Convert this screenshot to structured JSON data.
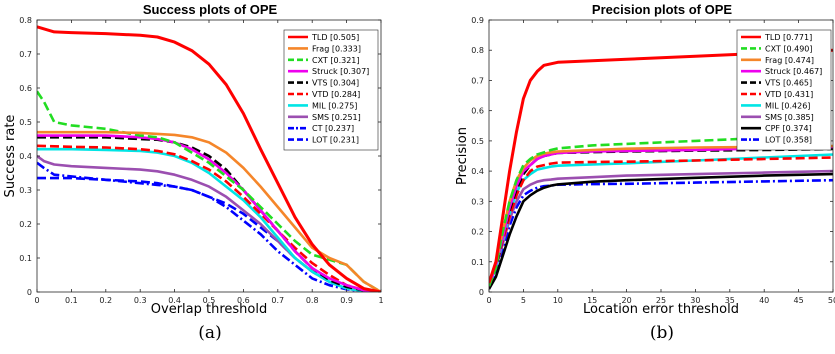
{
  "chart_data": [
    {
      "type": "line",
      "title": "Success plots of OPE",
      "xlabel": "Overlap threshold",
      "ylabel": "Success rate",
      "caption": "(a)",
      "xlim": [
        0,
        1
      ],
      "ylim": [
        0,
        0.8
      ],
      "xticks": [
        "0",
        "0.1",
        "0.2",
        "0.3",
        "0.4",
        "0.5",
        "0.6",
        "0.7",
        "0.8",
        "0.9",
        "1"
      ],
      "yticks": [
        "0",
        "0.1",
        "0.2",
        "0.3",
        "0.4",
        "0.5",
        "0.6",
        "0.7",
        "0.8"
      ],
      "grid": false,
      "legend_position": "top-right",
      "series": [
        {
          "name": "TLD [0.505]",
          "color": "#ff0000",
          "dash": "solid",
          "x": [
            0,
            0.05,
            0.1,
            0.2,
            0.3,
            0.35,
            0.4,
            0.45,
            0.5,
            0.55,
            0.6,
            0.65,
            0.7,
            0.75,
            0.8,
            0.85,
            0.9,
            0.95,
            1
          ],
          "y": [
            0.78,
            0.765,
            0.763,
            0.76,
            0.755,
            0.75,
            0.735,
            0.71,
            0.67,
            0.61,
            0.525,
            0.42,
            0.32,
            0.22,
            0.14,
            0.08,
            0.04,
            0.01,
            0
          ]
        },
        {
          "name": "Frag [0.333]",
          "color": "#f5862a",
          "dash": "solid",
          "x": [
            0,
            0.1,
            0.2,
            0.3,
            0.35,
            0.4,
            0.45,
            0.5,
            0.55,
            0.6,
            0.65,
            0.7,
            0.75,
            0.8,
            0.85,
            0.9,
            0.95,
            1
          ],
          "y": [
            0.47,
            0.47,
            0.47,
            0.468,
            0.465,
            0.462,
            0.455,
            0.44,
            0.41,
            0.365,
            0.31,
            0.25,
            0.19,
            0.13,
            0.1,
            0.08,
            0.03,
            0
          ]
        },
        {
          "name": "CXT [0.321]",
          "color": "#22dd22",
          "dash": "dash",
          "x": [
            0,
            0.02,
            0.05,
            0.1,
            0.2,
            0.3,
            0.35,
            0.4,
            0.45,
            0.5,
            0.55,
            0.6,
            0.65,
            0.7,
            0.75,
            0.8,
            0.85,
            0.9,
            0.95,
            1
          ],
          "y": [
            0.59,
            0.56,
            0.5,
            0.49,
            0.48,
            0.46,
            0.455,
            0.44,
            0.41,
            0.38,
            0.34,
            0.3,
            0.25,
            0.2,
            0.15,
            0.11,
            0.095,
            0.08,
            0.03,
            0
          ]
        },
        {
          "name": "Struck [0.307]",
          "color": "#ee00ee",
          "dash": "solid",
          "x": [
            0,
            0.1,
            0.2,
            0.3,
            0.35,
            0.4,
            0.45,
            0.5,
            0.55,
            0.6,
            0.65,
            0.7,
            0.75,
            0.8,
            0.85,
            0.9,
            0.95,
            1
          ],
          "y": [
            0.46,
            0.46,
            0.46,
            0.455,
            0.45,
            0.44,
            0.42,
            0.39,
            0.35,
            0.3,
            0.24,
            0.18,
            0.12,
            0.07,
            0.04,
            0.02,
            0.005,
            0
          ]
        },
        {
          "name": "VTS [0.304]",
          "color": "#000000",
          "dash": "dash",
          "x": [
            0,
            0.1,
            0.2,
            0.3,
            0.35,
            0.4,
            0.45,
            0.5,
            0.55,
            0.6,
            0.65,
            0.7,
            0.75,
            0.8,
            0.85,
            0.9,
            0.95,
            1
          ],
          "y": [
            0.455,
            0.455,
            0.455,
            0.45,
            0.448,
            0.44,
            0.425,
            0.4,
            0.36,
            0.3,
            0.24,
            0.18,
            0.12,
            0.07,
            0.035,
            0.015,
            0.005,
            0
          ]
        },
        {
          "name": "VTD [0.284]",
          "color": "#ff0000",
          "dash": "dash",
          "x": [
            0,
            0.1,
            0.2,
            0.3,
            0.35,
            0.4,
            0.45,
            0.5,
            0.55,
            0.6,
            0.65,
            0.7,
            0.75,
            0.8,
            0.85,
            0.9,
            0.95,
            1
          ],
          "y": [
            0.43,
            0.427,
            0.425,
            0.42,
            0.415,
            0.405,
            0.385,
            0.36,
            0.325,
            0.28,
            0.23,
            0.18,
            0.13,
            0.085,
            0.05,
            0.02,
            0.005,
            0
          ]
        },
        {
          "name": "MIL [0.275]",
          "color": "#00e5e5",
          "dash": "solid",
          "x": [
            0,
            0.1,
            0.2,
            0.3,
            0.35,
            0.4,
            0.45,
            0.5,
            0.55,
            0.6,
            0.65,
            0.7,
            0.75,
            0.8,
            0.85,
            0.9,
            0.95,
            1
          ],
          "y": [
            0.42,
            0.42,
            0.418,
            0.415,
            0.41,
            0.4,
            0.38,
            0.35,
            0.31,
            0.27,
            0.22,
            0.16,
            0.1,
            0.06,
            0.03,
            0.01,
            0.003,
            0
          ]
        },
        {
          "name": "SMS [0.251]",
          "color": "#9b4fb0",
          "dash": "solid",
          "x": [
            0,
            0.02,
            0.05,
            0.1,
            0.2,
            0.3,
            0.35,
            0.4,
            0.45,
            0.5,
            0.55,
            0.6,
            0.65,
            0.7,
            0.75,
            0.8,
            0.85,
            0.9,
            0.95,
            1
          ],
          "y": [
            0.4,
            0.385,
            0.375,
            0.37,
            0.365,
            0.36,
            0.355,
            0.345,
            0.33,
            0.31,
            0.28,
            0.24,
            0.2,
            0.15,
            0.1,
            0.06,
            0.03,
            0.01,
            0.003,
            0
          ]
        },
        {
          "name": "CT [0.237]",
          "color": "#0000ff",
          "dash": "dashdot",
          "x": [
            0,
            0.02,
            0.05,
            0.1,
            0.2,
            0.3,
            0.35,
            0.4,
            0.45,
            0.5,
            0.55,
            0.6,
            0.65,
            0.7,
            0.75,
            0.8,
            0.85,
            0.9,
            0.95,
            1
          ],
          "y": [
            0.38,
            0.365,
            0.345,
            0.34,
            0.33,
            0.32,
            0.315,
            0.31,
            0.3,
            0.28,
            0.25,
            0.21,
            0.17,
            0.12,
            0.08,
            0.04,
            0.02,
            0.008,
            0.002,
            0
          ]
        },
        {
          "name": "LOT [0.231]",
          "color": "#0000ff",
          "dash": "dash",
          "x": [
            0,
            0.05,
            0.1,
            0.2,
            0.3,
            0.35,
            0.4,
            0.45,
            0.5,
            0.55,
            0.6,
            0.65,
            0.7,
            0.75,
            0.8,
            0.85,
            0.9,
            0.95,
            1
          ],
          "y": [
            0.335,
            0.335,
            0.335,
            0.33,
            0.325,
            0.32,
            0.31,
            0.3,
            0.28,
            0.26,
            0.23,
            0.19,
            0.15,
            0.1,
            0.06,
            0.03,
            0.01,
            0.003,
            0
          ]
        }
      ]
    },
    {
      "type": "line",
      "title": "Precision plots of OPE",
      "xlabel": "Location error threshold",
      "ylabel": "Precision",
      "caption": "(b)",
      "xlim": [
        0,
        50
      ],
      "ylim": [
        0,
        0.9
      ],
      "xticks": [
        "0",
        "5",
        "10",
        "15",
        "20",
        "25",
        "30",
        "35",
        "40",
        "45",
        "50"
      ],
      "yticks": [
        "0",
        "0.1",
        "0.2",
        "0.3",
        "0.4",
        "0.5",
        "0.6",
        "0.7",
        "0.8",
        "0.9"
      ],
      "grid": false,
      "legend_position": "top-right",
      "series": [
        {
          "name": "TLD [0.771]",
          "color": "#ff0000",
          "dash": "solid",
          "x": [
            0,
            1,
            2,
            3,
            4,
            5,
            6,
            7,
            8,
            9,
            10,
            15,
            20,
            30,
            40,
            50
          ],
          "y": [
            0.03,
            0.1,
            0.25,
            0.4,
            0.53,
            0.64,
            0.7,
            0.73,
            0.75,
            0.755,
            0.76,
            0.765,
            0.77,
            0.78,
            0.79,
            0.8
          ]
        },
        {
          "name": "CXT [0.490]",
          "color": "#22dd22",
          "dash": "dash",
          "x": [
            0,
            1,
            2,
            3,
            4,
            5,
            6,
            7,
            8,
            9,
            10,
            15,
            20,
            30,
            40,
            50
          ],
          "y": [
            0.02,
            0.08,
            0.2,
            0.3,
            0.37,
            0.42,
            0.44,
            0.455,
            0.462,
            0.47,
            0.475,
            0.485,
            0.49,
            0.5,
            0.51,
            0.52
          ]
        },
        {
          "name": "Frag [0.474]",
          "color": "#f5862a",
          "dash": "solid",
          "x": [
            0,
            1,
            2,
            3,
            4,
            5,
            6,
            7,
            8,
            9,
            10,
            15,
            20,
            30,
            40,
            50
          ],
          "y": [
            0.03,
            0.1,
            0.2,
            0.3,
            0.37,
            0.41,
            0.435,
            0.45,
            0.458,
            0.462,
            0.465,
            0.47,
            0.474,
            0.478,
            0.48,
            0.483
          ]
        },
        {
          "name": "Struck [0.467]",
          "color": "#ee00ee",
          "dash": "solid",
          "x": [
            0,
            1,
            2,
            3,
            4,
            5,
            6,
            7,
            8,
            9,
            10,
            15,
            20,
            30,
            40,
            50
          ],
          "y": [
            0.02,
            0.09,
            0.18,
            0.28,
            0.35,
            0.4,
            0.42,
            0.44,
            0.45,
            0.455,
            0.46,
            0.465,
            0.467,
            0.47,
            0.475,
            0.48
          ]
        },
        {
          "name": "VTS [0.465]",
          "color": "#000000",
          "dash": "dash",
          "x": [
            0,
            1,
            2,
            3,
            4,
            5,
            6,
            7,
            8,
            9,
            10,
            15,
            20,
            30,
            40,
            50
          ],
          "y": [
            0.02,
            0.08,
            0.18,
            0.27,
            0.34,
            0.39,
            0.42,
            0.44,
            0.45,
            0.455,
            0.46,
            0.463,
            0.465,
            0.468,
            0.47,
            0.473
          ]
        },
        {
          "name": "VTD [0.431]",
          "color": "#ff0000",
          "dash": "dash",
          "x": [
            0,
            1,
            2,
            3,
            4,
            5,
            6,
            7,
            8,
            9,
            10,
            15,
            20,
            30,
            40,
            50
          ],
          "y": [
            0.02,
            0.08,
            0.17,
            0.25,
            0.32,
            0.37,
            0.4,
            0.415,
            0.42,
            0.425,
            0.428,
            0.43,
            0.431,
            0.435,
            0.44,
            0.445
          ]
        },
        {
          "name": "MIL [0.426]",
          "color": "#00e5e5",
          "dash": "solid",
          "x": [
            0,
            1,
            2,
            3,
            4,
            5,
            6,
            7,
            8,
            9,
            10,
            15,
            20,
            30,
            40,
            50
          ],
          "y": [
            0.02,
            0.08,
            0.17,
            0.26,
            0.33,
            0.37,
            0.39,
            0.405,
            0.41,
            0.415,
            0.418,
            0.422,
            0.426,
            0.435,
            0.445,
            0.455
          ]
        },
        {
          "name": "SMS [0.385]",
          "color": "#9b4fb0",
          "dash": "solid",
          "x": [
            0,
            1,
            2,
            3,
            4,
            5,
            6,
            7,
            8,
            9,
            10,
            15,
            20,
            30,
            40,
            50
          ],
          "y": [
            0.02,
            0.08,
            0.16,
            0.24,
            0.3,
            0.34,
            0.355,
            0.365,
            0.37,
            0.372,
            0.375,
            0.38,
            0.385,
            0.39,
            0.395,
            0.4
          ]
        },
        {
          "name": "CPF [0.374]",
          "color": "#000000",
          "dash": "solid",
          "x": [
            0,
            1,
            2,
            3,
            4,
            5,
            6,
            7,
            8,
            9,
            10,
            15,
            20,
            30,
            40,
            50
          ],
          "y": [
            0.01,
            0.05,
            0.12,
            0.19,
            0.25,
            0.3,
            0.32,
            0.335,
            0.345,
            0.352,
            0.356,
            0.365,
            0.37,
            0.378,
            0.385,
            0.39
          ]
        },
        {
          "name": "LOT [0.358]",
          "color": "#0000ff",
          "dash": "dashdot",
          "x": [
            0,
            1,
            2,
            3,
            4,
            5,
            6,
            7,
            8,
            9,
            10,
            15,
            20,
            30,
            40,
            50
          ],
          "y": [
            0.01,
            0.06,
            0.14,
            0.22,
            0.28,
            0.32,
            0.335,
            0.345,
            0.35,
            0.352,
            0.355,
            0.357,
            0.358,
            0.362,
            0.366,
            0.37
          ]
        }
      ]
    }
  ]
}
